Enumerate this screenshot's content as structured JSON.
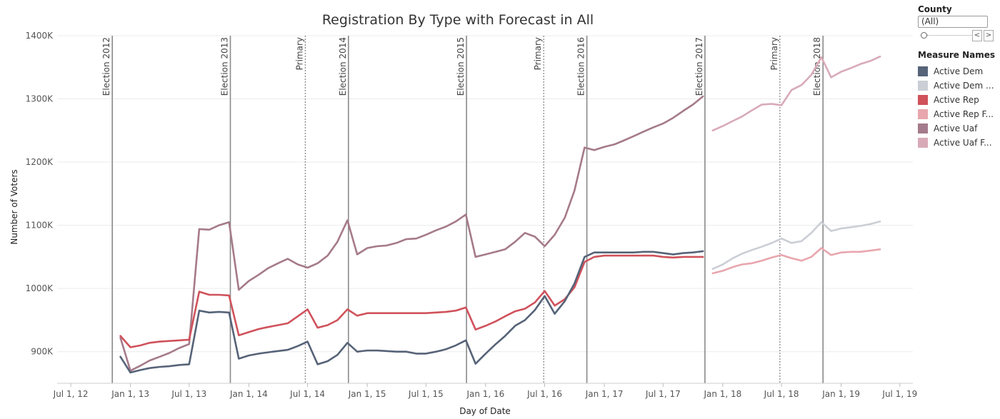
{
  "chart_data": {
    "type": "line",
    "title": "Registration By Type with Forecast in All",
    "xlabel": "Day of Date",
    "ylabel": "Number of Voters",
    "ylim": [
      850000,
      1400000
    ],
    "xlim": [
      "2012-05-20",
      "2019-08-10"
    ],
    "yticks": [
      {
        "value": 900000,
        "label": "900K"
      },
      {
        "value": 1000000,
        "label": "1000K"
      },
      {
        "value": 1100000,
        "label": "1100K"
      },
      {
        "value": 1200000,
        "label": "1200K"
      },
      {
        "value": 1300000,
        "label": "1300K"
      },
      {
        "value": 1400000,
        "label": "1400K"
      }
    ],
    "xticks": [
      {
        "date": "2012-07-01",
        "label": "Jul 1, 12"
      },
      {
        "date": "2013-01-01",
        "label": "Jan 1, 13"
      },
      {
        "date": "2013-07-01",
        "label": "Jul 1, 13"
      },
      {
        "date": "2014-01-01",
        "label": "Jan 1, 14"
      },
      {
        "date": "2014-07-01",
        "label": "Jul 1, 14"
      },
      {
        "date": "2015-01-01",
        "label": "Jan 1, 15"
      },
      {
        "date": "2015-07-01",
        "label": "Jul 1, 15"
      },
      {
        "date": "2016-01-01",
        "label": "Jan 1, 16"
      },
      {
        "date": "2016-07-01",
        "label": "Jul 1, 16"
      },
      {
        "date": "2017-01-01",
        "label": "Jan 1, 17"
      },
      {
        "date": "2017-07-01",
        "label": "Jul 1, 17"
      },
      {
        "date": "2018-01-01",
        "label": "Jan 1, 18"
      },
      {
        "date": "2018-07-01",
        "label": "Jul 1, 18"
      },
      {
        "date": "2019-01-01",
        "label": "Jan 1, 19"
      },
      {
        "date": "2019-07-01",
        "label": "Jul 1, 19"
      }
    ],
    "grid": true,
    "legend_position": "right",
    "reference_lines": [
      {
        "date": "2012-11-06",
        "label": "Election 2012",
        "style": "solid"
      },
      {
        "date": "2013-11-05",
        "label": "Election 2013",
        "style": "solid"
      },
      {
        "date": "2014-06-24",
        "label": "Primary",
        "style": "dotted"
      },
      {
        "date": "2014-11-04",
        "label": "Election 2014",
        "style": "solid"
      },
      {
        "date": "2015-11-03",
        "label": "Election 2015",
        "style": "solid"
      },
      {
        "date": "2016-06-28",
        "label": "Primary",
        "style": "dotted"
      },
      {
        "date": "2016-11-08",
        "label": "Election 2016",
        "style": "solid"
      },
      {
        "date": "2017-11-07",
        "label": "Election 2017",
        "style": "solid"
      },
      {
        "date": "2018-06-26",
        "label": "Primary",
        "style": "dotted"
      },
      {
        "date": "2018-11-06",
        "label": "Election 2018",
        "style": "solid"
      }
    ],
    "series": [
      {
        "name": "Active Uaf",
        "color": "#a57a8a",
        "x": [
          "2012-12-01",
          "2013-01-01",
          "2013-02-01",
          "2013-03-01",
          "2013-04-01",
          "2013-05-01",
          "2013-06-01",
          "2013-07-01",
          "2013-08-01",
          "2013-09-01",
          "2013-10-01",
          "2013-11-01",
          "2013-12-01",
          "2014-01-01",
          "2014-02-01",
          "2014-03-01",
          "2014-04-01",
          "2014-05-01",
          "2014-06-01",
          "2014-07-01",
          "2014-08-01",
          "2014-09-01",
          "2014-10-01",
          "2014-11-01",
          "2014-12-01",
          "2015-01-01",
          "2015-02-01",
          "2015-03-01",
          "2015-04-01",
          "2015-05-01",
          "2015-06-01",
          "2015-07-01",
          "2015-08-01",
          "2015-09-01",
          "2015-10-01",
          "2015-11-01",
          "2015-12-01",
          "2016-01-01",
          "2016-02-01",
          "2016-03-01",
          "2016-04-01",
          "2016-05-01",
          "2016-06-01",
          "2016-07-01",
          "2016-08-01",
          "2016-09-01",
          "2016-10-01",
          "2016-11-01",
          "2016-12-01",
          "2017-01-01",
          "2017-02-01",
          "2017-03-01",
          "2017-04-01",
          "2017-05-01",
          "2017-06-01",
          "2017-07-01",
          "2017-08-01",
          "2017-09-01",
          "2017-10-01",
          "2017-11-01"
        ],
        "values": [
          922000,
          870000,
          878000,
          886000,
          892000,
          898000,
          906000,
          912000,
          1094000,
          1093000,
          1100000,
          1105000,
          998000,
          1012000,
          1022000,
          1032000,
          1040000,
          1047000,
          1038000,
          1033000,
          1040000,
          1052000,
          1074000,
          1108000,
          1054000,
          1064000,
          1067000,
          1068000,
          1072000,
          1078000,
          1079000,
          1085000,
          1092000,
          1098000,
          1106000,
          1117000,
          1050000,
          1054000,
          1058000,
          1062000,
          1074000,
          1088000,
          1082000,
          1067000,
          1085000,
          1112000,
          1155000,
          1223000,
          1219000,
          1224000,
          1228000,
          1234000,
          1241000,
          1248000,
          1255000,
          1261000,
          1270000,
          1281000,
          1291000,
          1304000
        ]
      },
      {
        "name": "Active Rep",
        "color": "#d0525b",
        "x": [
          "2012-12-01",
          "2013-01-01",
          "2013-02-01",
          "2013-03-01",
          "2013-04-01",
          "2013-05-01",
          "2013-06-01",
          "2013-07-01",
          "2013-08-01",
          "2013-09-01",
          "2013-10-01",
          "2013-11-01",
          "2013-12-01",
          "2014-01-01",
          "2014-02-01",
          "2014-03-01",
          "2014-04-01",
          "2014-05-01",
          "2014-06-01",
          "2014-07-01",
          "2014-08-01",
          "2014-09-01",
          "2014-10-01",
          "2014-11-01",
          "2014-12-01",
          "2015-01-01",
          "2015-02-01",
          "2015-03-01",
          "2015-04-01",
          "2015-05-01",
          "2015-06-01",
          "2015-07-01",
          "2015-08-01",
          "2015-09-01",
          "2015-10-01",
          "2015-11-01",
          "2015-12-01",
          "2016-01-01",
          "2016-02-01",
          "2016-03-01",
          "2016-04-01",
          "2016-05-01",
          "2016-06-01",
          "2016-07-01",
          "2016-08-01",
          "2016-09-01",
          "2016-10-01",
          "2016-11-01",
          "2016-12-01",
          "2017-01-01",
          "2017-02-01",
          "2017-03-01",
          "2017-04-01",
          "2017-05-01",
          "2017-06-01",
          "2017-07-01",
          "2017-08-01",
          "2017-09-01",
          "2017-10-01",
          "2017-11-01"
        ],
        "values": [
          925000,
          907000,
          910000,
          914000,
          916000,
          917000,
          918000,
          919000,
          995000,
          990000,
          990000,
          989000,
          926000,
          931000,
          936000,
          939000,
          942000,
          945000,
          956000,
          967000,
          938000,
          942000,
          950000,
          967000,
          957000,
          961000,
          961000,
          961000,
          961000,
          961000,
          961000,
          961000,
          962000,
          963000,
          965000,
          970000,
          935000,
          941000,
          948000,
          956000,
          964000,
          968000,
          978000,
          996000,
          973000,
          983000,
          1002000,
          1042000,
          1050000,
          1052000,
          1052000,
          1052000,
          1052000,
          1052000,
          1052000,
          1050000,
          1049000,
          1050000,
          1050000,
          1050000
        ]
      },
      {
        "name": "Active Dem",
        "color": "#566378",
        "x": [
          "2012-12-01",
          "2013-01-01",
          "2013-02-01",
          "2013-03-01",
          "2013-04-01",
          "2013-05-01",
          "2013-06-01",
          "2013-07-01",
          "2013-08-01",
          "2013-09-01",
          "2013-10-01",
          "2013-11-01",
          "2013-12-01",
          "2014-01-01",
          "2014-02-01",
          "2014-03-01",
          "2014-04-01",
          "2014-05-01",
          "2014-06-01",
          "2014-07-01",
          "2014-08-01",
          "2014-09-01",
          "2014-10-01",
          "2014-11-01",
          "2014-12-01",
          "2015-01-01",
          "2015-02-01",
          "2015-03-01",
          "2015-04-01",
          "2015-05-01",
          "2015-06-01",
          "2015-07-01",
          "2015-08-01",
          "2015-09-01",
          "2015-10-01",
          "2015-11-01",
          "2015-12-01",
          "2016-01-01",
          "2016-02-01",
          "2016-03-01",
          "2016-04-01",
          "2016-05-01",
          "2016-06-01",
          "2016-07-01",
          "2016-08-01",
          "2016-09-01",
          "2016-10-01",
          "2016-11-01",
          "2016-12-01",
          "2017-01-01",
          "2017-02-01",
          "2017-03-01",
          "2017-04-01",
          "2017-05-01",
          "2017-06-01",
          "2017-07-01",
          "2017-08-01",
          "2017-09-01",
          "2017-10-01",
          "2017-11-01"
        ],
        "values": [
          892000,
          867000,
          871000,
          874000,
          876000,
          877000,
          879000,
          880000,
          965000,
          962000,
          963000,
          962000,
          889000,
          894000,
          897000,
          899000,
          901000,
          903000,
          909000,
          916000,
          880000,
          885000,
          895000,
          914000,
          900000,
          902000,
          902000,
          901000,
          900000,
          900000,
          897000,
          897000,
          900000,
          904000,
          910000,
          918000,
          881000,
          897000,
          912000,
          925000,
          941000,
          950000,
          966000,
          988000,
          960000,
          980000,
          1008000,
          1050000,
          1057000,
          1057000,
          1057000,
          1057000,
          1057000,
          1058000,
          1058000,
          1056000,
          1054000,
          1056000,
          1057000,
          1059000
        ]
      },
      {
        "name": "Active Uaf F...",
        "color": "#d8aab8",
        "x": [
          "2017-12-01",
          "2018-01-01",
          "2018-02-01",
          "2018-03-01",
          "2018-04-01",
          "2018-05-01",
          "2018-06-01",
          "2018-07-01",
          "2018-08-01",
          "2018-09-01",
          "2018-10-01",
          "2018-11-01",
          "2018-12-01",
          "2019-01-01",
          "2019-02-01",
          "2019-03-01",
          "2019-04-01",
          "2019-05-01"
        ],
        "values": [
          1250000,
          1257000,
          1265000,
          1272000,
          1282000,
          1291000,
          1292000,
          1290000,
          1314000,
          1322000,
          1338000,
          1366000,
          1334000,
          1343000,
          1349000,
          1355000,
          1360000,
          1367000
        ]
      },
      {
        "name": "Active Dem ...",
        "color": "#cbced5",
        "x": [
          "2017-12-01",
          "2018-01-01",
          "2018-02-01",
          "2018-03-01",
          "2018-04-01",
          "2018-05-01",
          "2018-06-01",
          "2018-07-01",
          "2018-08-01",
          "2018-09-01",
          "2018-10-01",
          "2018-11-01",
          "2018-12-01",
          "2019-01-01",
          "2019-02-01",
          "2019-03-01",
          "2019-04-01",
          "2019-05-01"
        ],
        "values": [
          1031000,
          1038000,
          1048000,
          1055000,
          1061000,
          1066000,
          1072000,
          1079000,
          1072000,
          1075000,
          1088000,
          1105000,
          1091000,
          1095000,
          1097000,
          1099000,
          1102000,
          1106000
        ]
      },
      {
        "name": "Active Rep F...",
        "color": "#e8a6ad",
        "x": [
          "2017-12-01",
          "2018-01-01",
          "2018-02-01",
          "2018-03-01",
          "2018-04-01",
          "2018-05-01",
          "2018-06-01",
          "2018-07-01",
          "2018-08-01",
          "2018-09-01",
          "2018-10-01",
          "2018-11-01",
          "2018-12-01",
          "2019-01-01",
          "2019-02-01",
          "2019-03-01",
          "2019-04-01",
          "2019-05-01"
        ],
        "values": [
          1024000,
          1028000,
          1034000,
          1038000,
          1040000,
          1044000,
          1049000,
          1053000,
          1048000,
          1044000,
          1050000,
          1064000,
          1053000,
          1057000,
          1058000,
          1058000,
          1060000,
          1062000
        ]
      }
    ]
  },
  "filter": {
    "title": "County",
    "value": "(All)",
    "prev_label": "<",
    "next_label": ">"
  },
  "legend": {
    "title": "Measure Names",
    "items": [
      {
        "label": "Active Dem",
        "color": "#566378"
      },
      {
        "label": "Active Dem ...",
        "color": "#cbced5"
      },
      {
        "label": "Active Rep",
        "color": "#d0525b"
      },
      {
        "label": "Active Rep F...",
        "color": "#e8a6ad"
      },
      {
        "label": "Active Uaf",
        "color": "#a57a8a"
      },
      {
        "label": "Active Uaf F...",
        "color": "#d8aab8"
      }
    ]
  }
}
